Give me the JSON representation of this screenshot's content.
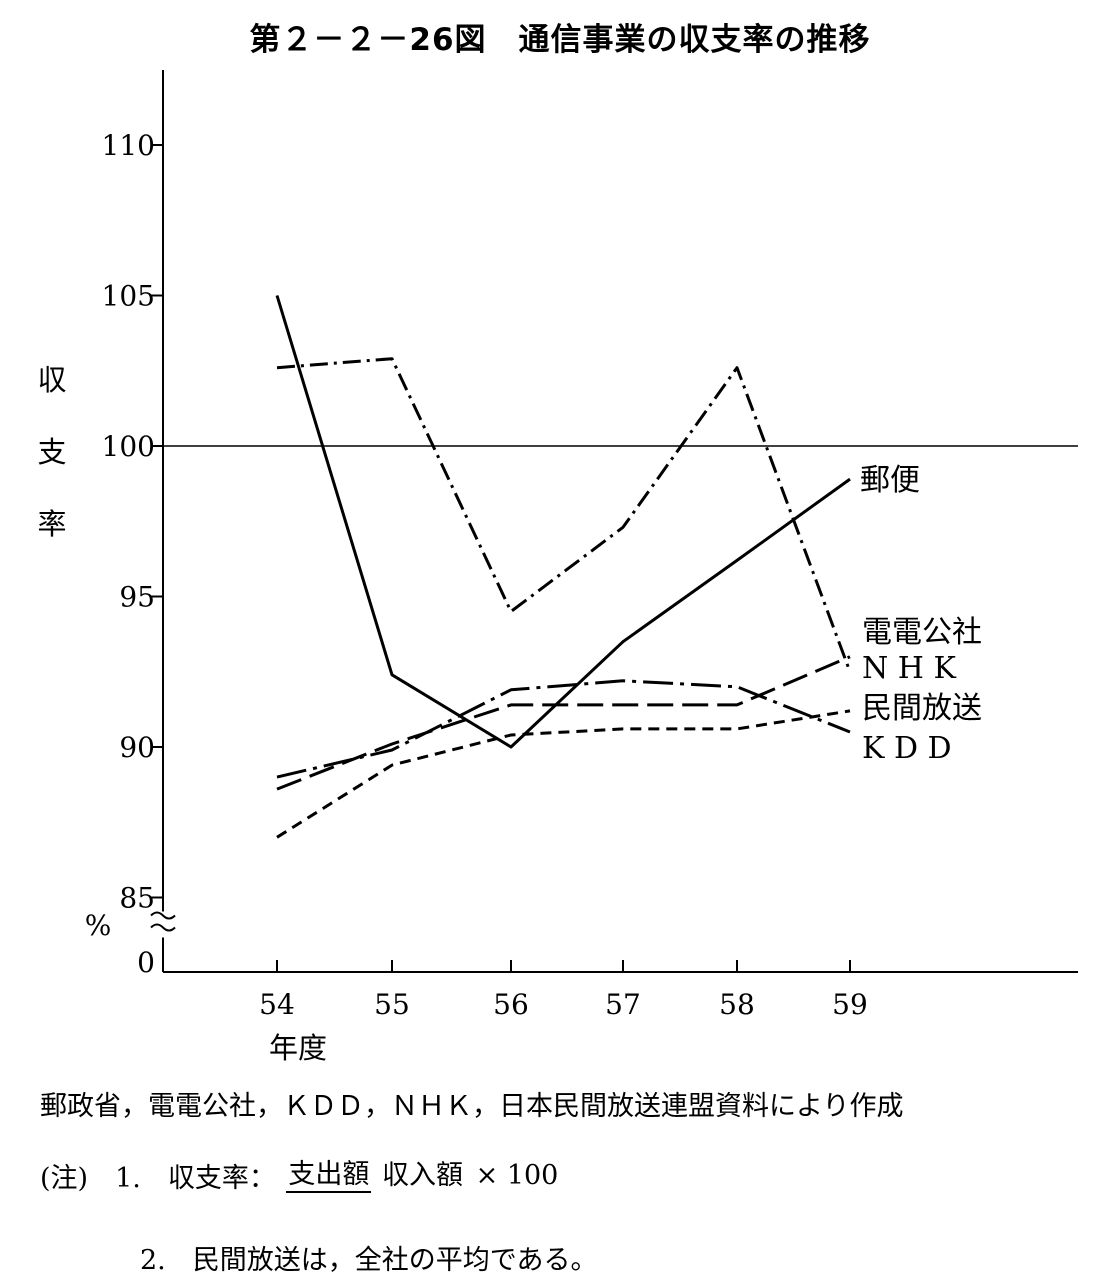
{
  "title": "第２－２－26図　通信事業の収支率の推移",
  "chart_data": {
    "type": "line",
    "title": "第２－２－26図　通信事業の収支率の推移",
    "ylabel": "収支率",
    "ylabel_chars": [
      "収",
      "支",
      "率"
    ],
    "yunit": "%",
    "xlabel": "年度",
    "categories": [
      "54",
      "55",
      "56",
      "57",
      "58",
      "59"
    ],
    "ylim": [
      85,
      110
    ],
    "yticks": [
      "110",
      "105",
      "100",
      "95",
      "90",
      "85",
      "0"
    ],
    "axis_break": true,
    "reference_line": 100,
    "series": [
      {
        "name": "郵便",
        "style": "solid",
        "values": [
          105.0,
          92.4,
          90.0,
          93.5,
          96.2,
          98.9
        ]
      },
      {
        "name": "電電公社",
        "style": "dash-dot",
        "values": [
          102.6,
          102.9,
          94.5,
          97.3,
          102.6,
          92.5
        ]
      },
      {
        "name": "NHK",
        "style": "long-dash",
        "values": [
          88.6,
          90.1,
          91.4,
          91.4,
          91.4,
          93.0
        ]
      },
      {
        "name": "民間放送",
        "style": "short-dash",
        "values": [
          87.0,
          89.4,
          90.4,
          90.6,
          90.6,
          91.2
        ]
      },
      {
        "name": "KDD",
        "style": "dash-dot-long",
        "values": [
          89.0,
          89.9,
          91.9,
          92.2,
          92.0,
          90.5
        ]
      }
    ],
    "series_labels": [
      "郵便",
      "電電公社",
      "N H K",
      "民間放送",
      "K D D"
    ]
  },
  "notes": {
    "source": "郵政省，電電公社，ＫＤＤ，ＮＨＫ，日本民間放送連盟資料により作成",
    "note1_prefix": "(注)　1.　収支率：",
    "note1_numerator": "支出額",
    "note1_denominator": "収入額",
    "note1_suffix": "× 100",
    "note2": "2.　民間放送は，全社の平均である。"
  }
}
